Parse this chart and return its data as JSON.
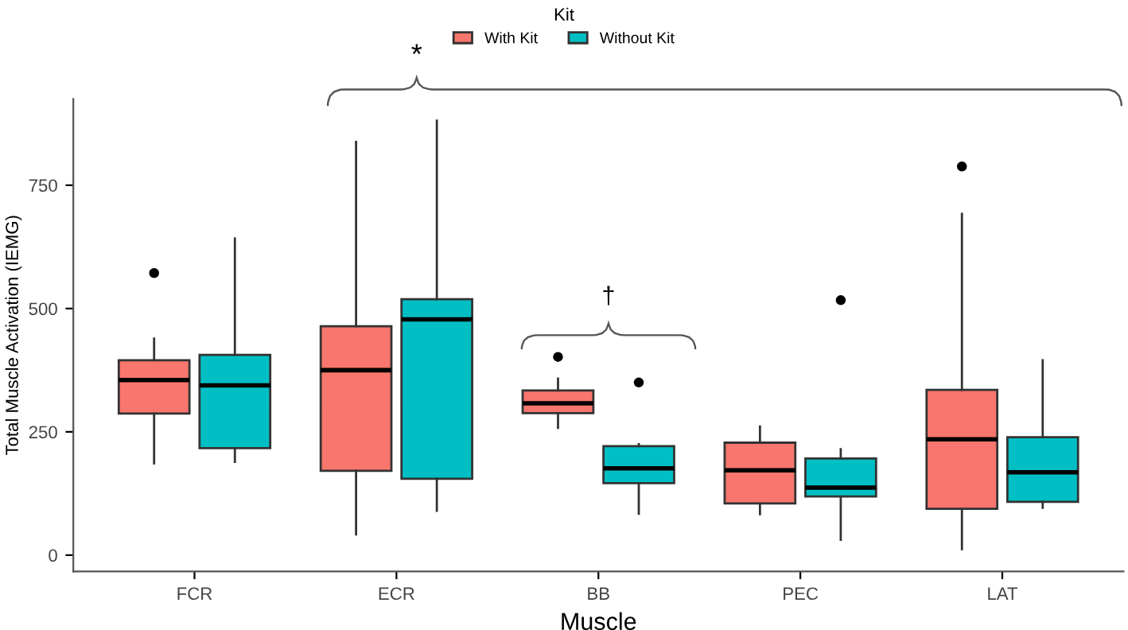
{
  "chart_data": {
    "type": "box",
    "xlabel": "Muscle",
    "ylabel": "Total Muscle Activation (IEMG)",
    "legend_title": "Kit",
    "legend": "top",
    "categories": [
      "FCR",
      "ECR",
      "BB",
      "PEC",
      "LAT"
    ],
    "ylim": [
      -33,
      925
    ],
    "yticks": [
      0,
      250,
      500,
      750
    ],
    "grid": false,
    "series": [
      {
        "name": "With Kit",
        "color": "#f8766d",
        "boxes": [
          {
            "low": 186,
            "q1": 287,
            "median": 355,
            "q3": 395,
            "high": 439,
            "outliers": [
              572
            ]
          },
          {
            "low": 42,
            "q1": 171,
            "median": 375,
            "q3": 464,
            "high": 838
          },
          {
            "low": 258,
            "q1": 288,
            "median": 308,
            "q3": 334,
            "high": 358,
            "outliers": [
              402
            ]
          },
          {
            "low": 83,
            "q1": 105,
            "median": 172,
            "q3": 228,
            "high": 261
          },
          {
            "low": 12,
            "q1": 94,
            "median": 235,
            "q3": 335,
            "high": 692,
            "outliers": [
              788
            ]
          }
        ]
      },
      {
        "name": "Without Kit",
        "color": "#00bfc4",
        "boxes": [
          {
            "low": 189,
            "q1": 217,
            "median": 344,
            "q3": 406,
            "high": 642
          },
          {
            "low": 90,
            "q1": 155,
            "median": 478,
            "q3": 519,
            "high": 881
          },
          {
            "low": 84,
            "q1": 146,
            "median": 176,
            "q3": 221,
            "high": 225,
            "outliers": [
              350
            ]
          },
          {
            "low": 31,
            "q1": 119,
            "median": 137,
            "q3": 196,
            "high": 215,
            "outliers": [
              517
            ]
          },
          {
            "low": 96,
            "q1": 108,
            "median": 168,
            "q3": 239,
            "high": 395
          }
        ]
      }
    ],
    "annotations": [
      "*",
      "†"
    ]
  }
}
